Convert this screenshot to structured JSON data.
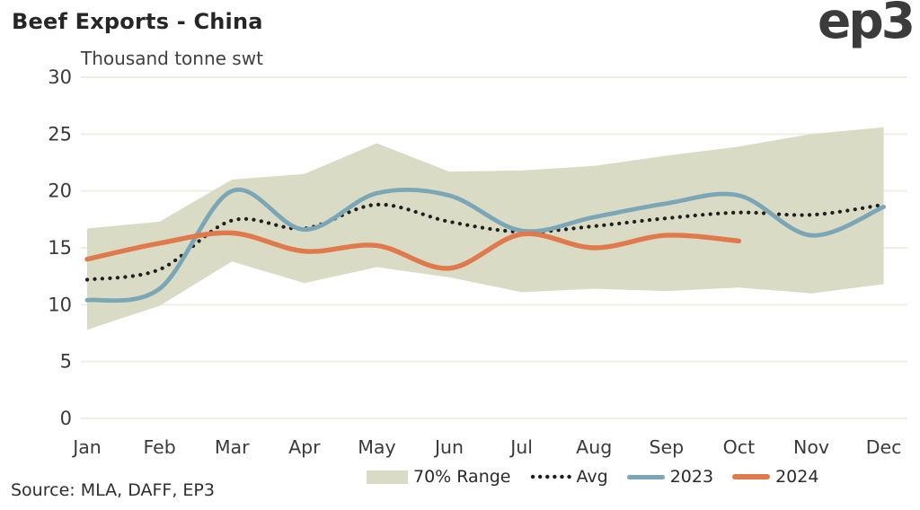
{
  "header": {
    "title": "Beef Exports - China",
    "logo": "ep3"
  },
  "chart": {
    "subtitle": "Thousand tonne swt"
  },
  "legend": {
    "range_label": "70% Range",
    "avg_label": "Avg",
    "y2023_label": "2023",
    "y2024_label": "2024"
  },
  "source": {
    "text": "Source: MLA, DAFF, EP3"
  },
  "colors": {
    "band": "#d9dbc5",
    "avg": "#1f1f1f",
    "y2023": "#7aa6b6",
    "y2024": "#e0794b",
    "gridline": "#efeee2",
    "tick_text": "#3a3a3a"
  },
  "chart_data": {
    "type": "line",
    "title": "Beef Exports - China",
    "ylabel": "Thousand tonne swt",
    "categories": [
      "Jan",
      "Feb",
      "Mar",
      "Apr",
      "May",
      "Jun",
      "Jul",
      "Aug",
      "Sep",
      "Oct",
      "Nov",
      "Dec"
    ],
    "ylim": [
      0,
      30
    ],
    "yticks": [
      0,
      5,
      10,
      15,
      20,
      25,
      30
    ],
    "grid": "horizontal",
    "legend_position": "bottom",
    "band": {
      "name": "70% Range",
      "upper": [
        16.7,
        17.3,
        21.0,
        21.5,
        24.2,
        21.7,
        21.8,
        22.2,
        23.1,
        23.9,
        25.0,
        25.6
      ],
      "lower": [
        7.8,
        9.9,
        13.8,
        11.9,
        13.3,
        12.4,
        11.1,
        11.4,
        11.2,
        11.5,
        11.0,
        11.8
      ]
    },
    "series": [
      {
        "name": "Avg",
        "style": "dotted",
        "color": "#1f1f1f",
        "values": [
          12.2,
          13.1,
          17.4,
          16.7,
          18.8,
          17.3,
          16.4,
          16.9,
          17.6,
          18.1,
          17.9,
          18.8
        ]
      },
      {
        "name": "2023",
        "style": "solid",
        "color": "#7aa6b6",
        "values": [
          10.4,
          11.4,
          20.0,
          16.6,
          19.8,
          19.6,
          16.5,
          17.7,
          18.9,
          19.6,
          16.1,
          18.6
        ]
      },
      {
        "name": "2024",
        "style": "solid",
        "color": "#e0794b",
        "values": [
          14.0,
          15.4,
          16.3,
          14.7,
          15.2,
          13.2,
          16.2,
          15.0,
          16.1,
          15.6,
          null,
          null
        ]
      }
    ]
  }
}
